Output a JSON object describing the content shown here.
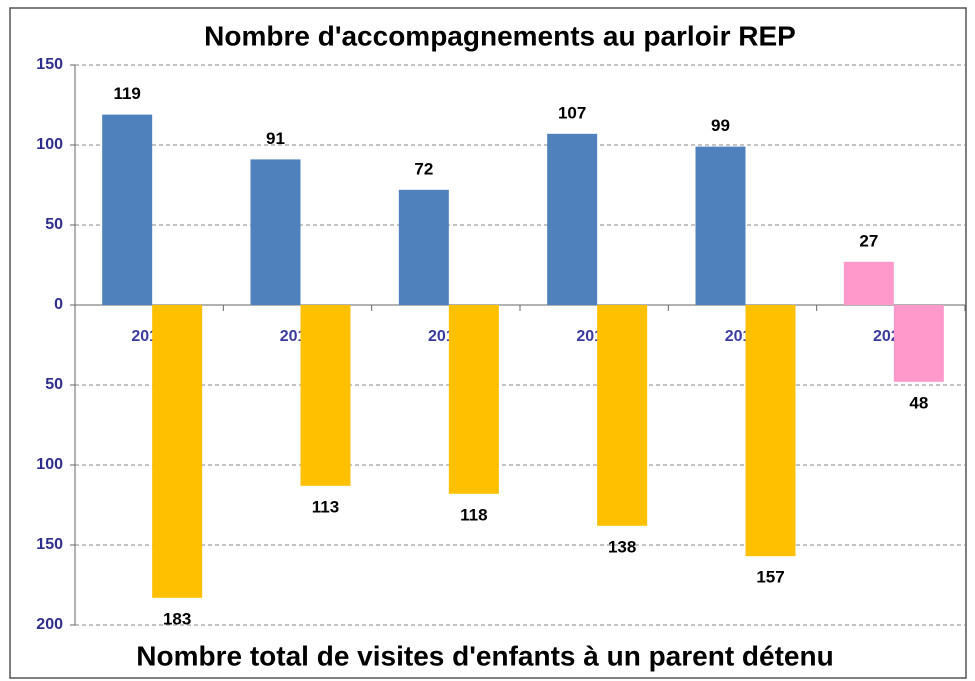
{
  "chart_data": {
    "type": "bar",
    "title": "Nombre d'accompagnements au parloir REP",
    "bottom_title": "Nombre total de visites d'enfants à un parent détenu",
    "categories": [
      "2015",
      "2016",
      "2017",
      "2018",
      "2019",
      "2020"
    ],
    "series": [
      {
        "colors": [
          "#4f81bd",
          "#4f81bd",
          "#4f81bd",
          "#4f81bd",
          "#4f81bd",
          "#ff99cc"
        ],
        "values": [
          119,
          91,
          72,
          107,
          99,
          27
        ]
      },
      {
        "colors": [
          "#ffc000",
          "#ffc000",
          "#ffc000",
          "#ffc000",
          "#ffc000",
          "#ff99cc"
        ],
        "values": [
          -183,
          -113,
          -118,
          -138,
          -157,
          -48
        ],
        "value_labels": [
          "183",
          "113",
          "118",
          "138",
          "157",
          "48"
        ]
      }
    ],
    "ylim": [
      -200,
      150
    ],
    "yticks": [
      150,
      100,
      50,
      0,
      {
        "value": -50,
        "label": "50"
      },
      {
        "value": -100,
        "label": "100"
      },
      {
        "value": -150,
        "label": "150"
      },
      {
        "value": -200,
        "label": "200"
      }
    ],
    "grid": true
  }
}
